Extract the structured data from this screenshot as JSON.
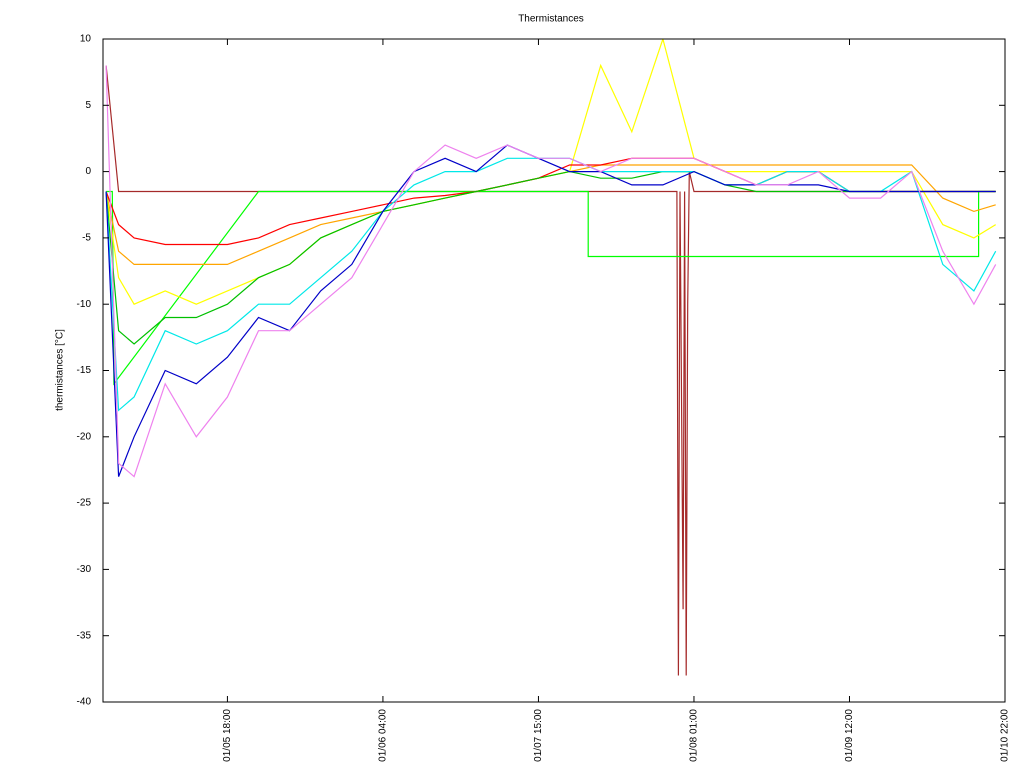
{
  "chart_data": {
    "type": "line",
    "title": "Thermistances",
    "y_label": "thermistances [°C]",
    "xlim": [
      10,
      68
    ],
    "xticks": [
      {
        "value": 18,
        "label": "01/05 18:00"
      },
      {
        "value": 28,
        "label": "01/06 04:00"
      },
      {
        "value": 38,
        "label": "01/07 15:00"
      },
      {
        "value": 48,
        "label": "01/08 01:00"
      },
      {
        "value": 58,
        "label": "01/09 12:00"
      },
      {
        "value": 68,
        "label": "01/10 22:00"
      }
    ],
    "ylim": [
      -40,
      10
    ],
    "yticks": [
      -40,
      -35,
      -30,
      -25,
      -20,
      -15,
      -10,
      -5,
      0,
      5,
      10
    ],
    "grid": false,
    "series": [
      {
        "color": "#a52a2a",
        "x": [
          10.2,
          11,
          20,
          30,
          40,
          46.9,
          47,
          47.1,
          47.3,
          47.4,
          47.5,
          47.6,
          47.7,
          48,
          60,
          67.4
        ],
        "values": [
          8,
          -1.5,
          -1.5,
          -1.5,
          -1.5,
          -1.5,
          -38,
          -1.5,
          -33,
          -1.5,
          -38,
          -10,
          0,
          -1.5,
          -1.5,
          -1.5
        ]
      },
      {
        "color": "#00ff00",
        "x": [
          10.2,
          10.6,
          10.7,
          20,
          30,
          41.2,
          41.2,
          66.3,
          66.3,
          67.4
        ],
        "values": [
          -1.5,
          -1.5,
          -16,
          -1.5,
          -1.5,
          -1.5,
          -6.4,
          -6.4,
          -1.5,
          -1.5
        ]
      },
      {
        "color": "#ffa500",
        "x": [
          10.2,
          11,
          12,
          14,
          16,
          18,
          20,
          22,
          24,
          26,
          28,
          30,
          32,
          34,
          36,
          38,
          40,
          42,
          44,
          46,
          48,
          50,
          52,
          54,
          56,
          58,
          60,
          62,
          64,
          66,
          67.4
        ],
        "values": [
          -1.5,
          -6,
          -7,
          -7,
          -7,
          -7,
          -6,
          -5,
          -4,
          -3.5,
          -3,
          -2.5,
          -2,
          -1.5,
          -1,
          -0.5,
          0,
          0.5,
          0.5,
          0.5,
          0.5,
          0.5,
          0.5,
          0.5,
          0.5,
          0.5,
          0.5,
          0.5,
          -2,
          -3,
          -2.5
        ]
      },
      {
        "color": "#ffff00",
        "x": [
          10.2,
          11,
          12,
          14,
          16,
          18,
          20,
          22,
          24,
          26,
          28,
          30,
          32,
          34,
          36,
          38,
          40,
          42,
          44,
          46,
          48,
          50,
          52,
          54,
          56,
          58,
          60,
          62,
          64,
          66,
          67.4
        ],
        "values": [
          -1.5,
          -8,
          -10,
          -9,
          -10,
          -9,
          -8,
          -7,
          -5,
          -4,
          -3,
          -2.5,
          -2,
          -1.5,
          -1,
          -0.5,
          0,
          8,
          3,
          10,
          1,
          0,
          0,
          0,
          0,
          0,
          0,
          0,
          -4,
          -5,
          -4
        ]
      },
      {
        "color": "#ff0000",
        "x": [
          10.2,
          11,
          12,
          14,
          16,
          18,
          20,
          22,
          24,
          26,
          28,
          30,
          32,
          34,
          36,
          38,
          40,
          42,
          44,
          46,
          48,
          50,
          52,
          54,
          56,
          58,
          60,
          62,
          64,
          66,
          67.4
        ],
        "values": [
          -1.5,
          -4,
          -5,
          -5.5,
          -5.5,
          -5.5,
          -5,
          -4,
          -3.5,
          -3,
          -2.5,
          -2,
          -1.8,
          -1.5,
          -1,
          -0.5,
          0.5,
          0.5,
          1,
          1,
          1,
          0,
          -1,
          0,
          0,
          -1.5,
          -1.5,
          -1.5,
          -1.5,
          -1.5,
          -1.5
        ]
      },
      {
        "color": "#00c000",
        "x": [
          10.2,
          11,
          12,
          14,
          16,
          18,
          20,
          22,
          24,
          26,
          28,
          30,
          32,
          34,
          36,
          38,
          40,
          42,
          44,
          46,
          48,
          50,
          52,
          54,
          56,
          58,
          60,
          62,
          64,
          66,
          67.4
        ],
        "values": [
          -1.5,
          -12,
          -13,
          -11,
          -11,
          -10,
          -8,
          -7,
          -5,
          -4,
          -3,
          -2.5,
          -2,
          -1.5,
          -1,
          -0.5,
          0,
          -0.5,
          -0.5,
          0,
          0,
          -1,
          -1.5,
          -1.5,
          -1.5,
          -1.5,
          -1.5,
          -1.5,
          -1.5,
          -1.5,
          -1.5
        ]
      },
      {
        "color": "#00e8e8",
        "x": [
          10.2,
          11,
          12,
          14,
          16,
          18,
          20,
          22,
          24,
          26,
          28,
          30,
          32,
          34,
          36,
          38,
          40,
          42,
          44,
          46,
          48,
          50,
          52,
          54,
          56,
          58,
          60,
          62,
          64,
          66,
          67.4
        ],
        "values": [
          -1.5,
          -18,
          -17,
          -12,
          -13,
          -12,
          -10,
          -10,
          -8,
          -6,
          -3,
          -1,
          0,
          0,
          1,
          1,
          1,
          0,
          0,
          0,
          0,
          -1,
          -1,
          0,
          0,
          -1.5,
          -1.5,
          0,
          -7,
          -9,
          -6
        ]
      },
      {
        "color": "#0000c8",
        "x": [
          10.2,
          11,
          12,
          14,
          16,
          18,
          20,
          22,
          24,
          26,
          28,
          30,
          32,
          34,
          36,
          38,
          40,
          42,
          44,
          46,
          48,
          50,
          52,
          54,
          56,
          58,
          60,
          62,
          64,
          66,
          67.4
        ],
        "values": [
          -1.5,
          -23,
          -20,
          -15,
          -16,
          -14,
          -11,
          -12,
          -9,
          -7,
          -3,
          0,
          1,
          0,
          2,
          1,
          0,
          0,
          -1,
          -1,
          0,
          -1,
          -1,
          -1,
          -1,
          -1.5,
          -1.5,
          -1.5,
          -1.5,
          -1.5,
          -1.5
        ]
      },
      {
        "color": "#ee82ee",
        "x": [
          10.2,
          11,
          12,
          14,
          16,
          18,
          20,
          22,
          24,
          26,
          28,
          30,
          32,
          34,
          36,
          38,
          40,
          42,
          44,
          46,
          48,
          50,
          52,
          54,
          56,
          58,
          60,
          62,
          64,
          66,
          67.4
        ],
        "values": [
          8,
          -22,
          -23,
          -16,
          -20,
          -17,
          -12,
          -12,
          -10,
          -8,
          -4,
          0,
          2,
          1,
          2,
          1,
          1,
          0,
          1,
          1,
          1,
          0,
          -1,
          -1,
          0,
          -2,
          -2,
          0,
          -6,
          -10,
          -7
        ]
      }
    ]
  }
}
